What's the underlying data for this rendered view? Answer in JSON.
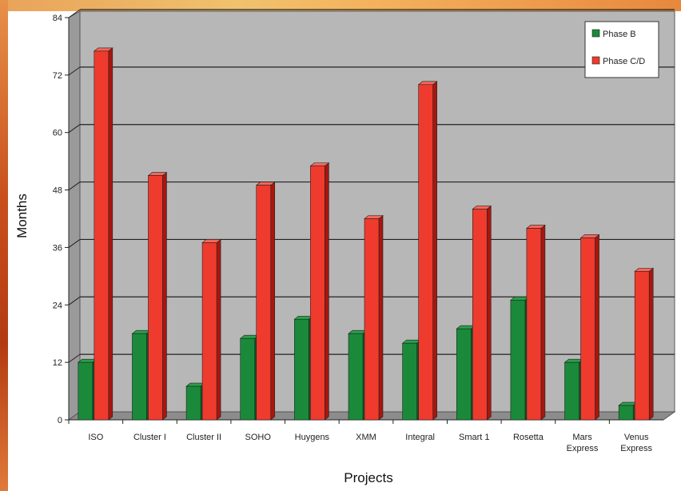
{
  "chart_data": {
    "type": "bar",
    "xlabel": "Projects",
    "ylabel": "Months",
    "ylim": [
      0,
      84
    ],
    "yticks": [
      0,
      12,
      24,
      36,
      48,
      60,
      72,
      84
    ],
    "grid": true,
    "legend_position": "top-right",
    "categories": [
      [
        "ISO"
      ],
      [
        "Cluster I"
      ],
      [
        "Cluster II"
      ],
      [
        "SOHO"
      ],
      [
        "Huygens"
      ],
      [
        "XMM"
      ],
      [
        "Integral"
      ],
      [
        "Smart 1"
      ],
      [
        "Rosetta"
      ],
      [
        "Mars",
        "Express"
      ],
      [
        "Venus",
        "Express"
      ]
    ],
    "series": [
      {
        "name": "Phase B",
        "color": "#1a8a3a",
        "side": "#0e5a24",
        "top": "#2aa04c",
        "values": [
          12,
          18,
          7,
          17,
          21,
          18,
          16,
          19,
          25,
          12,
          3
        ]
      },
      {
        "name": "Phase C/D",
        "color": "#ee3b2e",
        "side": "#a8160f",
        "top": "#f4665a",
        "values": [
          77,
          51,
          37,
          49,
          53,
          42,
          70,
          44,
          40,
          38,
          31
        ]
      }
    ]
  }
}
